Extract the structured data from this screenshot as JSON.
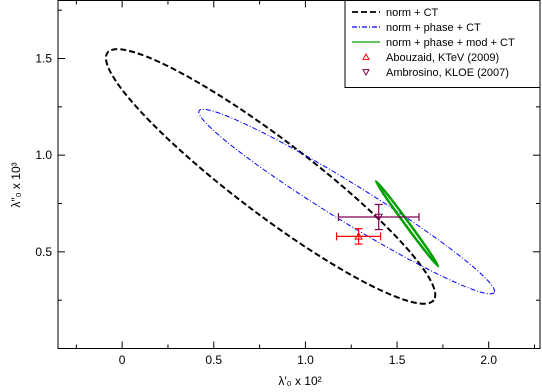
{
  "chart_data": {
    "type": "scatter",
    "xlabel": "λ′₀ x 10²",
    "ylabel": "λ″₀ x 10³",
    "xlim": [
      -0.35,
      2.28
    ],
    "ylim": [
      0.0,
      1.8
    ],
    "x_ticks": [
      0,
      0.5,
      1.0,
      1.5,
      2.0
    ],
    "x_tick_labels": [
      "0",
      "0.5",
      "1.0",
      "1.5",
      "2.0"
    ],
    "y_ticks": [
      0.5,
      1.0,
      1.5
    ],
    "y_tick_labels": [
      "0.5",
      "1.0",
      "1.5"
    ],
    "grid": false,
    "legend_position": "top-right",
    "contours": [
      {
        "name": "norm + CT",
        "color": "#000000",
        "style": "dashed",
        "center": [
          0.81,
          0.89
        ],
        "axis_end_1": [
          -0.08,
          1.53
        ],
        "axis_end_2": [
          1.7,
          0.25
        ],
        "minor_end": [
          0.925,
          1.05
        ]
      },
      {
        "name": "norm + phase + CT",
        "color": "#0000ff",
        "style": "dash-dot",
        "center": [
          1.225,
          0.76
        ],
        "axis_end_1": [
          0.42,
          1.23
        ],
        "axis_end_2": [
          2.03,
          0.29
        ],
        "minor_end": [
          1.275,
          0.845
        ]
      },
      {
        "name": "norm + phase + mod + CT",
        "color": "#00a000",
        "style": "solid",
        "center": [
          1.555,
          0.645
        ],
        "axis_end_1": [
          1.385,
          0.865
        ],
        "axis_end_2": [
          1.725,
          0.425
        ],
        "minor_end": [
          1.5635,
          0.6515
        ]
      }
    ],
    "points": [
      {
        "name": "Abouzaid, KTeV (2009)",
        "color": "#ff0000",
        "marker": "triangle-up",
        "x": 1.29,
        "y": 0.58,
        "xerr": 0.12,
        "yerr": 0.04
      },
      {
        "name": "Ambrosino, KLOE (2007)",
        "color": "#800050",
        "marker": "triangle-down",
        "x": 1.4,
        "y": 0.68,
        "xerr": 0.22,
        "yerr": 0.065
      }
    ]
  }
}
